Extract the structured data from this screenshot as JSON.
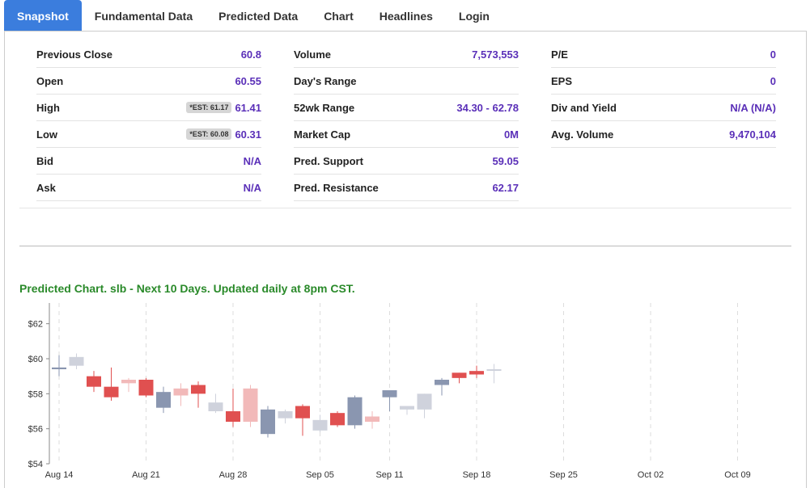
{
  "tabs": [
    "Snapshot",
    "Fundamental Data",
    "Predicted Data",
    "Chart",
    "Headlines",
    "Login"
  ],
  "snapshot": {
    "col1": [
      {
        "label": "Previous Close",
        "value": "60.8",
        "est": ""
      },
      {
        "label": "Open",
        "value": "60.55",
        "est": ""
      },
      {
        "label": "High",
        "value": "61.41",
        "est": "*EST: 61.17"
      },
      {
        "label": "Low",
        "value": "60.31",
        "est": "*EST: 60.08"
      },
      {
        "label": "Bid",
        "value": "N/A",
        "est": ""
      },
      {
        "label": "Ask",
        "value": "N/A",
        "est": ""
      }
    ],
    "col2": [
      {
        "label": "Volume",
        "value": "7,573,553"
      },
      {
        "label": "Day's Range",
        "value": ""
      },
      {
        "label": "52wk Range",
        "value": "34.30 - 62.78"
      },
      {
        "label": "Market Cap",
        "value": "0M"
      },
      {
        "label": "Pred. Support",
        "value": "59.05"
      },
      {
        "label": "Pred. Resistance",
        "value": "62.17"
      }
    ],
    "col3": [
      {
        "label": "P/E",
        "value": "0"
      },
      {
        "label": "EPS",
        "value": "0"
      },
      {
        "label": "Div and Yield",
        "value": "N/A (N/A)"
      },
      {
        "label": "Avg. Volume",
        "value": "9,470,104"
      }
    ]
  },
  "chart_title": "Predicted Chart. slb - Next 10 Days. Updated daily at 8pm CST.",
  "chart_data": {
    "type": "candlestick",
    "ylim": [
      54,
      63
    ],
    "yticks": [
      54,
      56,
      58,
      60,
      62
    ],
    "ytick_labels": [
      "$54",
      "$56",
      "$58",
      "$60",
      "$62"
    ],
    "xticks": [
      {
        "label": "Aug 14",
        "i": 0
      },
      {
        "label": "Aug 21",
        "i": 5
      },
      {
        "label": "Aug 28",
        "i": 10
      },
      {
        "label": "Sep 05",
        "i": 15
      },
      {
        "label": "Sep 11",
        "i": 19
      },
      {
        "label": "Sep 18",
        "i": 24
      },
      {
        "label": "Sep 25",
        "i": 29
      },
      {
        "label": "Oct 02",
        "i": 34
      },
      {
        "label": "Oct 09",
        "i": 39
      }
    ],
    "palette": {
      "actual_up": "#8a96b0",
      "actual_down": "#e05050",
      "predicted_up": "#cfd2dc",
      "predicted_down": "#f2b9b9",
      "forecast": "#3c4cc0",
      "forecast_down": "#ff3333"
    },
    "candles": [
      {
        "o": 59.5,
        "h": 60.2,
        "l": 59.0,
        "c": 59.4,
        "k": "actual_up"
      },
      {
        "o": 59.6,
        "h": 60.3,
        "l": 59.4,
        "c": 60.1,
        "k": "predicted_up"
      },
      {
        "o": 59.0,
        "h": 59.3,
        "l": 58.1,
        "c": 58.4,
        "k": "actual_down"
      },
      {
        "o": 58.4,
        "h": 59.5,
        "l": 57.6,
        "c": 57.8,
        "k": "actual_down"
      },
      {
        "o": 58.8,
        "h": 58.9,
        "l": 58.1,
        "c": 58.6,
        "k": "predicted_down"
      },
      {
        "o": 58.8,
        "h": 58.9,
        "l": 57.8,
        "c": 57.9,
        "k": "actual_down"
      },
      {
        "o": 57.2,
        "h": 58.4,
        "l": 56.9,
        "c": 58.1,
        "k": "actual_up"
      },
      {
        "o": 58.3,
        "h": 58.6,
        "l": 57.3,
        "c": 57.9,
        "k": "predicted_down"
      },
      {
        "o": 58.5,
        "h": 58.7,
        "l": 57.2,
        "c": 58.0,
        "k": "actual_down"
      },
      {
        "o": 57.5,
        "h": 58.0,
        "l": 56.9,
        "c": 57.0,
        "k": "predicted_up"
      },
      {
        "o": 57.0,
        "h": 58.3,
        "l": 56.1,
        "c": 56.4,
        "k": "actual_down"
      },
      {
        "o": 58.3,
        "h": 58.5,
        "l": 56.1,
        "c": 56.4,
        "k": "predicted_down"
      },
      {
        "o": 55.7,
        "h": 57.3,
        "l": 55.5,
        "c": 57.1,
        "k": "actual_up"
      },
      {
        "o": 56.6,
        "h": 57.1,
        "l": 56.3,
        "c": 57.0,
        "k": "predicted_up"
      },
      {
        "o": 57.3,
        "h": 57.4,
        "l": 55.6,
        "c": 56.6,
        "k": "actual_down"
      },
      {
        "o": 55.9,
        "h": 56.8,
        "l": 55.8,
        "c": 56.5,
        "k": "predicted_up"
      },
      {
        "o": 56.9,
        "h": 57.0,
        "l": 56.1,
        "c": 56.2,
        "k": "actual_down"
      },
      {
        "o": 56.2,
        "h": 57.9,
        "l": 56.0,
        "c": 57.8,
        "k": "actual_up"
      },
      {
        "o": 56.4,
        "h": 57.0,
        "l": 56.0,
        "c": 56.7,
        "k": "predicted_down"
      },
      {
        "o": 57.8,
        "h": 58.2,
        "l": 57.0,
        "c": 58.2,
        "k": "actual_up"
      },
      {
        "o": 57.1,
        "h": 57.3,
        "l": 56.8,
        "c": 57.3,
        "k": "predicted_up"
      },
      {
        "o": 57.1,
        "h": 58.0,
        "l": 56.6,
        "c": 58.0,
        "k": "predicted_up"
      },
      {
        "o": 58.5,
        "h": 58.9,
        "l": 57.9,
        "c": 58.8,
        "k": "actual_up"
      },
      {
        "o": 58.9,
        "h": 59.2,
        "l": 58.6,
        "c": 59.2,
        "k": "actual_down"
      },
      {
        "o": 59.1,
        "h": 59.6,
        "l": 58.9,
        "c": 59.3,
        "k": "actual_down"
      },
      {
        "o": 59.4,
        "h": 59.7,
        "l": 58.6,
        "c": 59.4,
        "k": "predicted_up"
      }
    ]
  }
}
